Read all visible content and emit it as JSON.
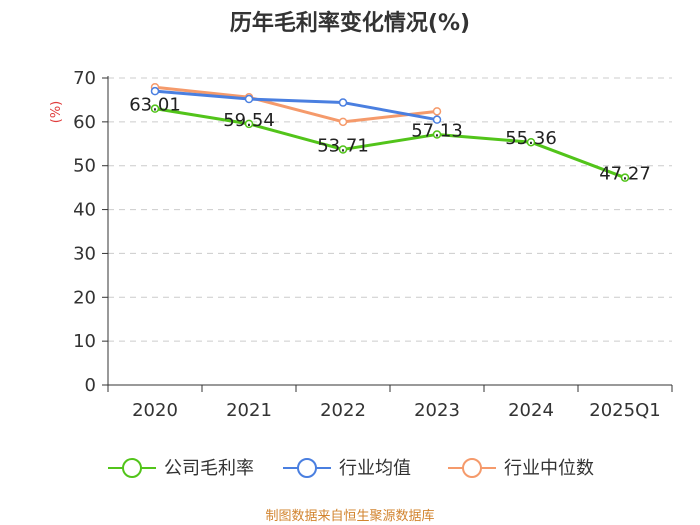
{
  "chart_data": {
    "type": "line",
    "title": "历年毛利率变化情况(%)",
    "ylabel": "(%)",
    "xlabel": "",
    "categories": [
      "2020",
      "2021",
      "2022",
      "2023",
      "2024",
      "2025Q1"
    ],
    "ylim": [
      0,
      70
    ],
    "yticks": [
      0,
      10,
      20,
      30,
      40,
      50,
      60,
      70
    ],
    "grid": true,
    "legend_position": "bottom",
    "series": [
      {
        "name": "公司毛利率",
        "color": "#52c41a",
        "values": [
          63.01,
          59.54,
          53.71,
          57.13,
          55.36,
          47.27
        ],
        "labels": [
          "63.01",
          "59.54",
          "53.71",
          "57.13",
          "55.36",
          "47.27"
        ]
      },
      {
        "name": "行业均值",
        "color": "#4a7fe0",
        "values": [
          67.0,
          65.2,
          64.4,
          60.5,
          null,
          null
        ]
      },
      {
        "name": "行业中位数",
        "color": "#f59a6b",
        "values": [
          67.9,
          65.6,
          60.0,
          62.4,
          null,
          null
        ]
      }
    ],
    "source": "制图数据来自恒生聚源数据库"
  }
}
